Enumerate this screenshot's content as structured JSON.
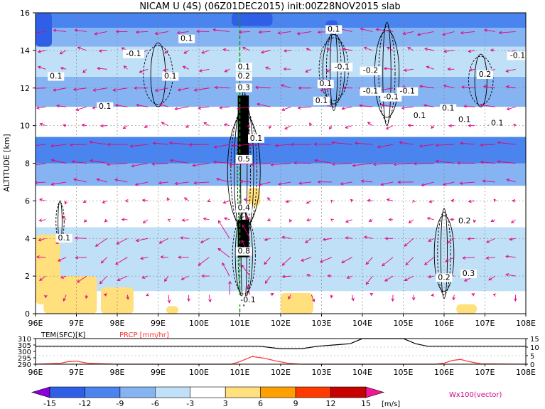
{
  "title": "NICAM U (4S) (06Z01DEC2015) init:00Z28NOV2015 slab",
  "chart_data": [
    {
      "type": "heatmap",
      "panel": "main",
      "ylabel": "ALTITUDE [km]",
      "xlabel": "",
      "xlim": [
        96,
        108
      ],
      "ylim": [
        0,
        16
      ],
      "xticks": [
        "96E",
        "97E",
        "98E",
        "99E",
        "100E",
        "101E",
        "102E",
        "103E",
        "104E",
        "105E",
        "106E",
        "107E",
        "108E"
      ],
      "yticks": [
        "0",
        "2",
        "4",
        "6",
        "8",
        "10",
        "12",
        "14",
        "16"
      ],
      "bands": [
        {
          "ylo": 0.0,
          "yhi": 1.2,
          "u": 0
        },
        {
          "ylo": 1.2,
          "yhi": 2.6,
          "u": -4
        },
        {
          "ylo": 2.6,
          "yhi": 4.6,
          "u": -5
        },
        {
          "ylo": 4.6,
          "yhi": 6.8,
          "u": -2
        },
        {
          "ylo": 6.8,
          "yhi": 8.0,
          "u": -7
        },
        {
          "ylo": 8.0,
          "yhi": 9.4,
          "u": -10
        },
        {
          "ylo": 9.4,
          "yhi": 11.0,
          "u": -2
        },
        {
          "ylo": 11.0,
          "yhi": 12.6,
          "u": -7
        },
        {
          "ylo": 12.6,
          "yhi": 14.2,
          "u": -4
        },
        {
          "ylo": 14.2,
          "yhi": 15.2,
          "u": -8
        },
        {
          "ylo": 15.2,
          "yhi": 16.0,
          "u": -11
        }
      ],
      "patches": [
        {
          "xlo": 96.0,
          "xhi": 96.4,
          "ylo": 14.2,
          "yhi": 16.0,
          "u": -14
        },
        {
          "xlo": 100.8,
          "xhi": 101.8,
          "ylo": 15.3,
          "yhi": 16.0,
          "u": -14
        },
        {
          "xlo": 103.1,
          "xhi": 103.4,
          "ylo": 15.0,
          "yhi": 15.6,
          "u": -14
        },
        {
          "xlo": 96.0,
          "xhi": 96.6,
          "ylo": 0.5,
          "yhi": 4.2,
          "u": 4
        },
        {
          "xlo": 96.2,
          "xhi": 97.5,
          "ylo": 0.0,
          "yhi": 2.0,
          "u": 4
        },
        {
          "xlo": 97.6,
          "xhi": 98.4,
          "ylo": 0.0,
          "yhi": 1.4,
          "u": 4
        },
        {
          "xlo": 101.2,
          "xhi": 101.5,
          "ylo": 5.7,
          "yhi": 6.7,
          "u": 4
        },
        {
          "xlo": 102.0,
          "xhi": 102.8,
          "ylo": 0.0,
          "yhi": 1.1,
          "u": 4
        },
        {
          "xlo": 106.3,
          "xhi": 106.8,
          "ylo": 0.0,
          "yhi": 0.5,
          "u": 4
        },
        {
          "xlo": 99.2,
          "xhi": 99.5,
          "ylo": 0.0,
          "yhi": 0.4,
          "u": 4
        }
      ],
      "contour_labels": [
        {
          "x": 96.5,
          "y": 12.5,
          "text": "0.1"
        },
        {
          "x": 99.7,
          "y": 14.5,
          "text": "0.1"
        },
        {
          "x": 99.3,
          "y": 12.5,
          "text": "0.1"
        },
        {
          "x": 98.4,
          "y": 13.7,
          "text": "-0.1"
        },
        {
          "x": 97.7,
          "y": 10.9,
          "text": "0.1"
        },
        {
          "x": 101.1,
          "y": 13.0,
          "text": "0.1"
        },
        {
          "x": 101.1,
          "y": 12.5,
          "text": "0.2"
        },
        {
          "x": 101.1,
          "y": 11.9,
          "text": "0.3"
        },
        {
          "x": 101.4,
          "y": 9.2,
          "text": "0.1"
        },
        {
          "x": 101.1,
          "y": 8.1,
          "text": "0.5"
        },
        {
          "x": 101.1,
          "y": 5.5,
          "text": "0.4"
        },
        {
          "x": 101.1,
          "y": 3.2,
          "text": "0.8"
        },
        {
          "x": 101.2,
          "y": 0.6,
          "text": "-0.1"
        },
        {
          "x": 96.7,
          "y": 3.9,
          "text": "0.1"
        },
        {
          "x": 103.3,
          "y": 15.0,
          "text": "0.1"
        },
        {
          "x": 103.5,
          "y": 13.0,
          "text": "-0.1"
        },
        {
          "x": 104.2,
          "y": 12.8,
          "text": "-0.2"
        },
        {
          "x": 103.1,
          "y": 12.1,
          "text": "0.1"
        },
        {
          "x": 104.2,
          "y": 11.7,
          "text": "-0.1"
        },
        {
          "x": 104.7,
          "y": 11.4,
          "text": "-0.1"
        },
        {
          "x": 105.1,
          "y": 11.7,
          "text": "-0.1"
        },
        {
          "x": 103.0,
          "y": 11.2,
          "text": "0.1"
        },
        {
          "x": 105.4,
          "y": 10.4,
          "text": "0.1"
        },
        {
          "x": 106.1,
          "y": 10.8,
          "text": "0.1"
        },
        {
          "x": 106.5,
          "y": 10.2,
          "text": "0.1"
        },
        {
          "x": 107.0,
          "y": 12.6,
          "text": "0.2"
        },
        {
          "x": 107.3,
          "y": 10.0,
          "text": "0.1"
        },
        {
          "x": 107.8,
          "y": 13.6,
          "text": "-0.1"
        },
        {
          "x": 106.5,
          "y": 4.8,
          "text": "0.2"
        },
        {
          "x": 106.6,
          "y": 2.0,
          "text": "0.3"
        },
        {
          "x": 106.0,
          "y": 1.8,
          "text": "0.2"
        }
      ]
    },
    {
      "type": "line",
      "panel": "timeseries",
      "series": [
        {
          "name": "TEM(SFC)[K]",
          "color": "#000000",
          "axis": "left",
          "x": [
            96,
            97,
            98,
            99,
            100,
            100.5,
            101,
            101.5,
            102,
            102.5,
            102.9,
            103.3,
            103.7,
            104,
            104.5,
            105,
            105.3,
            105.6,
            106,
            106.5,
            107,
            108
          ],
          "y": [
            304,
            304,
            304,
            304,
            304,
            304,
            304,
            304,
            302,
            302,
            304,
            305,
            306,
            310,
            310,
            310,
            306,
            304,
            304,
            304,
            304,
            304
          ]
        },
        {
          "name": "PRCP [mm/hr]",
          "color": "#ff3030",
          "axis": "right",
          "x": [
            96,
            96.6,
            96.8,
            97.0,
            97.3,
            98,
            100.8,
            101.0,
            101.3,
            101.6,
            101.9,
            102.2,
            102.5,
            105.8,
            106.0,
            106.2,
            106.4,
            106.6,
            106.9,
            108
          ],
          "y": [
            0,
            0.5,
            1.5,
            1.8,
            0.5,
            0,
            0,
            1.5,
            4.5,
            3.5,
            1.8,
            0.5,
            0,
            0,
            0.6,
            2.2,
            2.8,
            1.6,
            0.2,
            0
          ]
        }
      ],
      "left_ticks": [
        "290",
        "295",
        "300",
        "305",
        "310"
      ],
      "right_ticks": [
        "0",
        "5",
        "10",
        "15"
      ],
      "xticks": [
        "96E",
        "97E",
        "98E",
        "99E",
        "100E",
        "101E",
        "102E",
        "103E",
        "104E",
        "105E",
        "106E",
        "107E",
        "108E"
      ]
    }
  ],
  "colorbar": {
    "ticks": [
      "-15",
      "-12",
      "-9",
      "-6",
      "-3",
      "3",
      "6",
      "9",
      "12",
      "15"
    ],
    "unit": "[m/s]",
    "colors": [
      "#8a00dc",
      "#2f5fe6",
      "#4a84ee",
      "#86b4f2",
      "#bfe0f6",
      "#ffffff",
      "#ffe07c",
      "#ffa000",
      "#ff3a00",
      "#c80000",
      "#f01896"
    ]
  },
  "vector_label": "Wx100(vector)",
  "colors": {
    "vector": "#e6007e",
    "green_line": "#00aa00",
    "contour": "#000000"
  }
}
